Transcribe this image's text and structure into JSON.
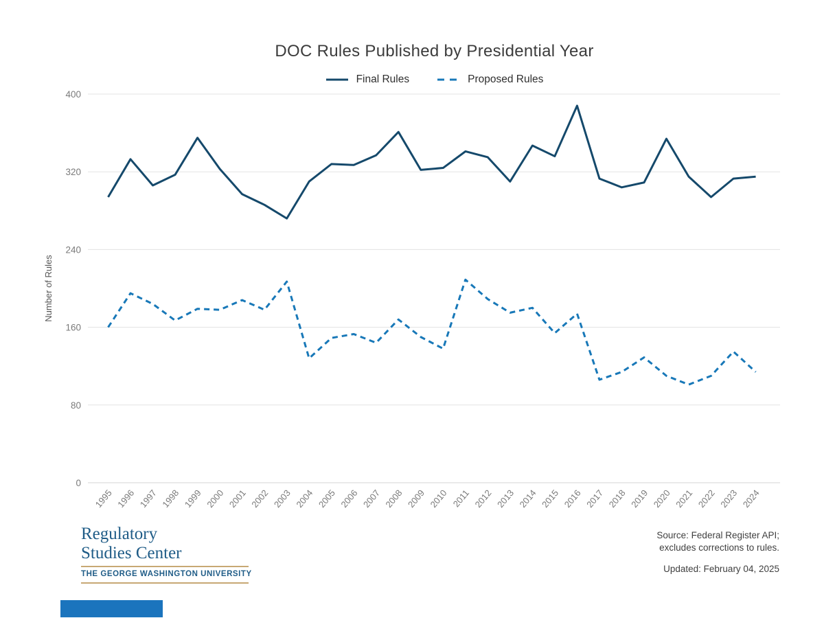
{
  "chart_data": {
    "type": "line",
    "title": "DOC Rules Published by Presidential Year",
    "xlabel": "",
    "ylabel": "Number of Rules",
    "ylim": [
      0,
      400
    ],
    "yticks": [
      0,
      80,
      160,
      240,
      320,
      400
    ],
    "grid": true,
    "legend_position": "top-center",
    "x": [
      1995,
      1996,
      1997,
      1998,
      1999,
      2000,
      2001,
      2002,
      2003,
      2004,
      2005,
      2006,
      2007,
      2008,
      2009,
      2010,
      2011,
      2012,
      2013,
      2014,
      2015,
      2016,
      2017,
      2018,
      2019,
      2020,
      2021,
      2022,
      2023,
      2024
    ],
    "series": [
      {
        "name": "Final Rules",
        "style": "solid",
        "color": "#15496B",
        "values": [
          294,
          333,
          306,
          317,
          355,
          323,
          297,
          286,
          272,
          310,
          328,
          327,
          337,
          361,
          322,
          324,
          341,
          335,
          310,
          347,
          336,
          388,
          313,
          304,
          309,
          354,
          315,
          294,
          313,
          315
        ]
      },
      {
        "name": "Proposed Rules",
        "style": "dashed",
        "color": "#1878B8",
        "values": [
          160,
          195,
          184,
          167,
          179,
          178,
          188,
          178,
          207,
          128,
          149,
          153,
          144,
          168,
          150,
          138,
          209,
          189,
          175,
          180,
          154,
          174,
          106,
          114,
          129,
          110,
          101,
          110,
          135,
          114
        ]
      }
    ]
  },
  "footer": {
    "logo": {
      "line1": "Regulatory",
      "line2": "Studies Center",
      "line3": "THE GEORGE WASHINGTON UNIVERSITY"
    },
    "source_line1": "Source: Federal Register API;",
    "source_line2": "excludes corrections to rules.",
    "updated": "Updated: February 04, 2025"
  },
  "colors": {
    "title_text": "#3C3C3C",
    "tick_label": "#7A7A7A",
    "gridline": "#E3E3E3",
    "axis_line": "#D4D4D4",
    "logo_blue": "#1F5C87",
    "logo_gold": "#C7A873",
    "footer_text": "#3F3F3F",
    "accent_bar": "#1B74BD"
  }
}
